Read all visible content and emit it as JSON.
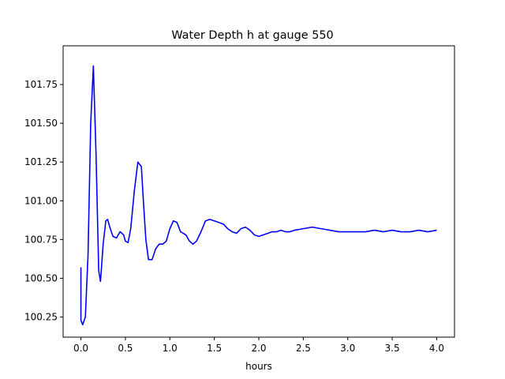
{
  "chart_data": {
    "type": "line",
    "title": "Water Depth h at gauge 550",
    "xlabel": "hours",
    "ylabel": "",
    "xlim": [
      -0.2,
      4.2
    ],
    "ylim": [
      100.12,
      102.0
    ],
    "x_ticks": [
      0.0,
      0.5,
      1.0,
      1.5,
      2.0,
      2.5,
      3.0,
      3.5,
      4.0
    ],
    "x_tick_labels": [
      "0.0",
      "0.5",
      "1.0",
      "1.5",
      "2.0",
      "2.5",
      "3.0",
      "3.5",
      "4.0"
    ],
    "y_ticks": [
      100.25,
      100.5,
      100.75,
      101.0,
      101.25,
      101.5,
      101.75
    ],
    "y_tick_labels": [
      "100.25",
      "100.50",
      "100.75",
      "101.00",
      "101.25",
      "101.50",
      "101.75"
    ],
    "grid": false,
    "series": [
      {
        "color": "#0000ff",
        "x": [
          0.0,
          0.0,
          0.02,
          0.05,
          0.08,
          0.11,
          0.14,
          0.17,
          0.2,
          0.22,
          0.25,
          0.28,
          0.3,
          0.33,
          0.36,
          0.4,
          0.44,
          0.48,
          0.5,
          0.53,
          0.56,
          0.6,
          0.64,
          0.68,
          0.7,
          0.73,
          0.76,
          0.8,
          0.84,
          0.88,
          0.92,
          0.96,
          1.0,
          1.04,
          1.08,
          1.12,
          1.15,
          1.18,
          1.22,
          1.26,
          1.3,
          1.35,
          1.4,
          1.45,
          1.5,
          1.55,
          1.6,
          1.65,
          1.7,
          1.75,
          1.8,
          1.85,
          1.9,
          1.95,
          2.0,
          2.05,
          2.1,
          2.15,
          2.2,
          2.25,
          2.3,
          2.35,
          2.4,
          2.5,
          2.6,
          2.7,
          2.8,
          2.9,
          3.0,
          3.1,
          3.2,
          3.3,
          3.4,
          3.5,
          3.6,
          3.7,
          3.8,
          3.9,
          4.0
        ],
        "y": [
          100.57,
          100.23,
          100.2,
          100.25,
          100.65,
          101.5,
          101.87,
          101.3,
          100.55,
          100.48,
          100.72,
          100.87,
          100.88,
          100.82,
          100.77,
          100.76,
          100.8,
          100.78,
          100.74,
          100.73,
          100.82,
          101.06,
          101.25,
          101.22,
          101.02,
          100.75,
          100.62,
          100.62,
          100.69,
          100.72,
          100.72,
          100.74,
          100.82,
          100.87,
          100.86,
          100.8,
          100.79,
          100.78,
          100.74,
          100.72,
          100.74,
          100.8,
          100.87,
          100.88,
          100.87,
          100.86,
          100.85,
          100.82,
          100.8,
          100.79,
          100.82,
          100.83,
          100.81,
          100.78,
          100.77,
          100.78,
          100.79,
          100.8,
          100.8,
          100.81,
          100.8,
          100.8,
          100.81,
          100.82,
          100.83,
          100.82,
          100.81,
          100.8,
          100.8,
          100.8,
          100.8,
          100.81,
          100.8,
          100.81,
          100.8,
          100.8,
          100.81,
          100.8,
          100.81
        ]
      }
    ]
  }
}
